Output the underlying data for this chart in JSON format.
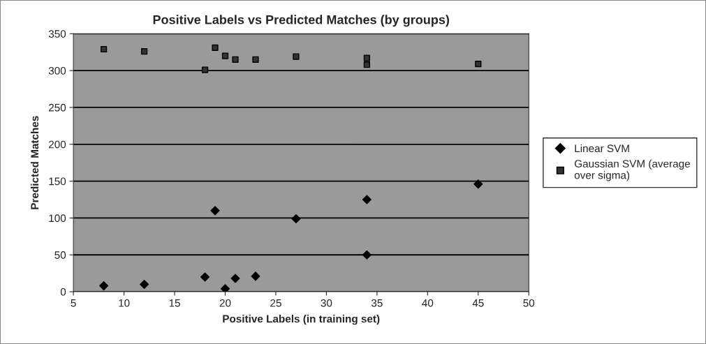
{
  "chart_data": {
    "type": "scatter",
    "title": "Positive Labels vs Predicted Matches (by groups)",
    "xlabel": "Positive Labels (in training set)",
    "ylabel": "Predicted Matches",
    "xlim": [
      5,
      50
    ],
    "xticks": [
      5,
      10,
      15,
      20,
      25,
      30,
      35,
      40,
      45,
      50
    ],
    "ylim": [
      0,
      350
    ],
    "yticks": [
      0,
      50,
      100,
      150,
      200,
      250,
      300,
      350
    ],
    "grid": "y",
    "legend": "right",
    "series": [
      {
        "name": "Linear SVM",
        "color": "#000000",
        "marker": "diamond",
        "x": [
          8,
          12,
          18,
          19,
          20,
          21,
          23,
          27,
          34,
          34,
          45
        ],
        "values": [
          8,
          10,
          20,
          110,
          4,
          18,
          21,
          99,
          125,
          50,
          146
        ]
      },
      {
        "name": "Gaussian SVM (average over sigma)",
        "color": "#333333",
        "marker": "square",
        "x": [
          8,
          12,
          18,
          19,
          20,
          21,
          23,
          27,
          34,
          34,
          45
        ],
        "values": [
          329,
          326,
          301,
          331,
          320,
          315,
          315,
          319,
          317,
          308,
          309
        ]
      }
    ]
  }
}
